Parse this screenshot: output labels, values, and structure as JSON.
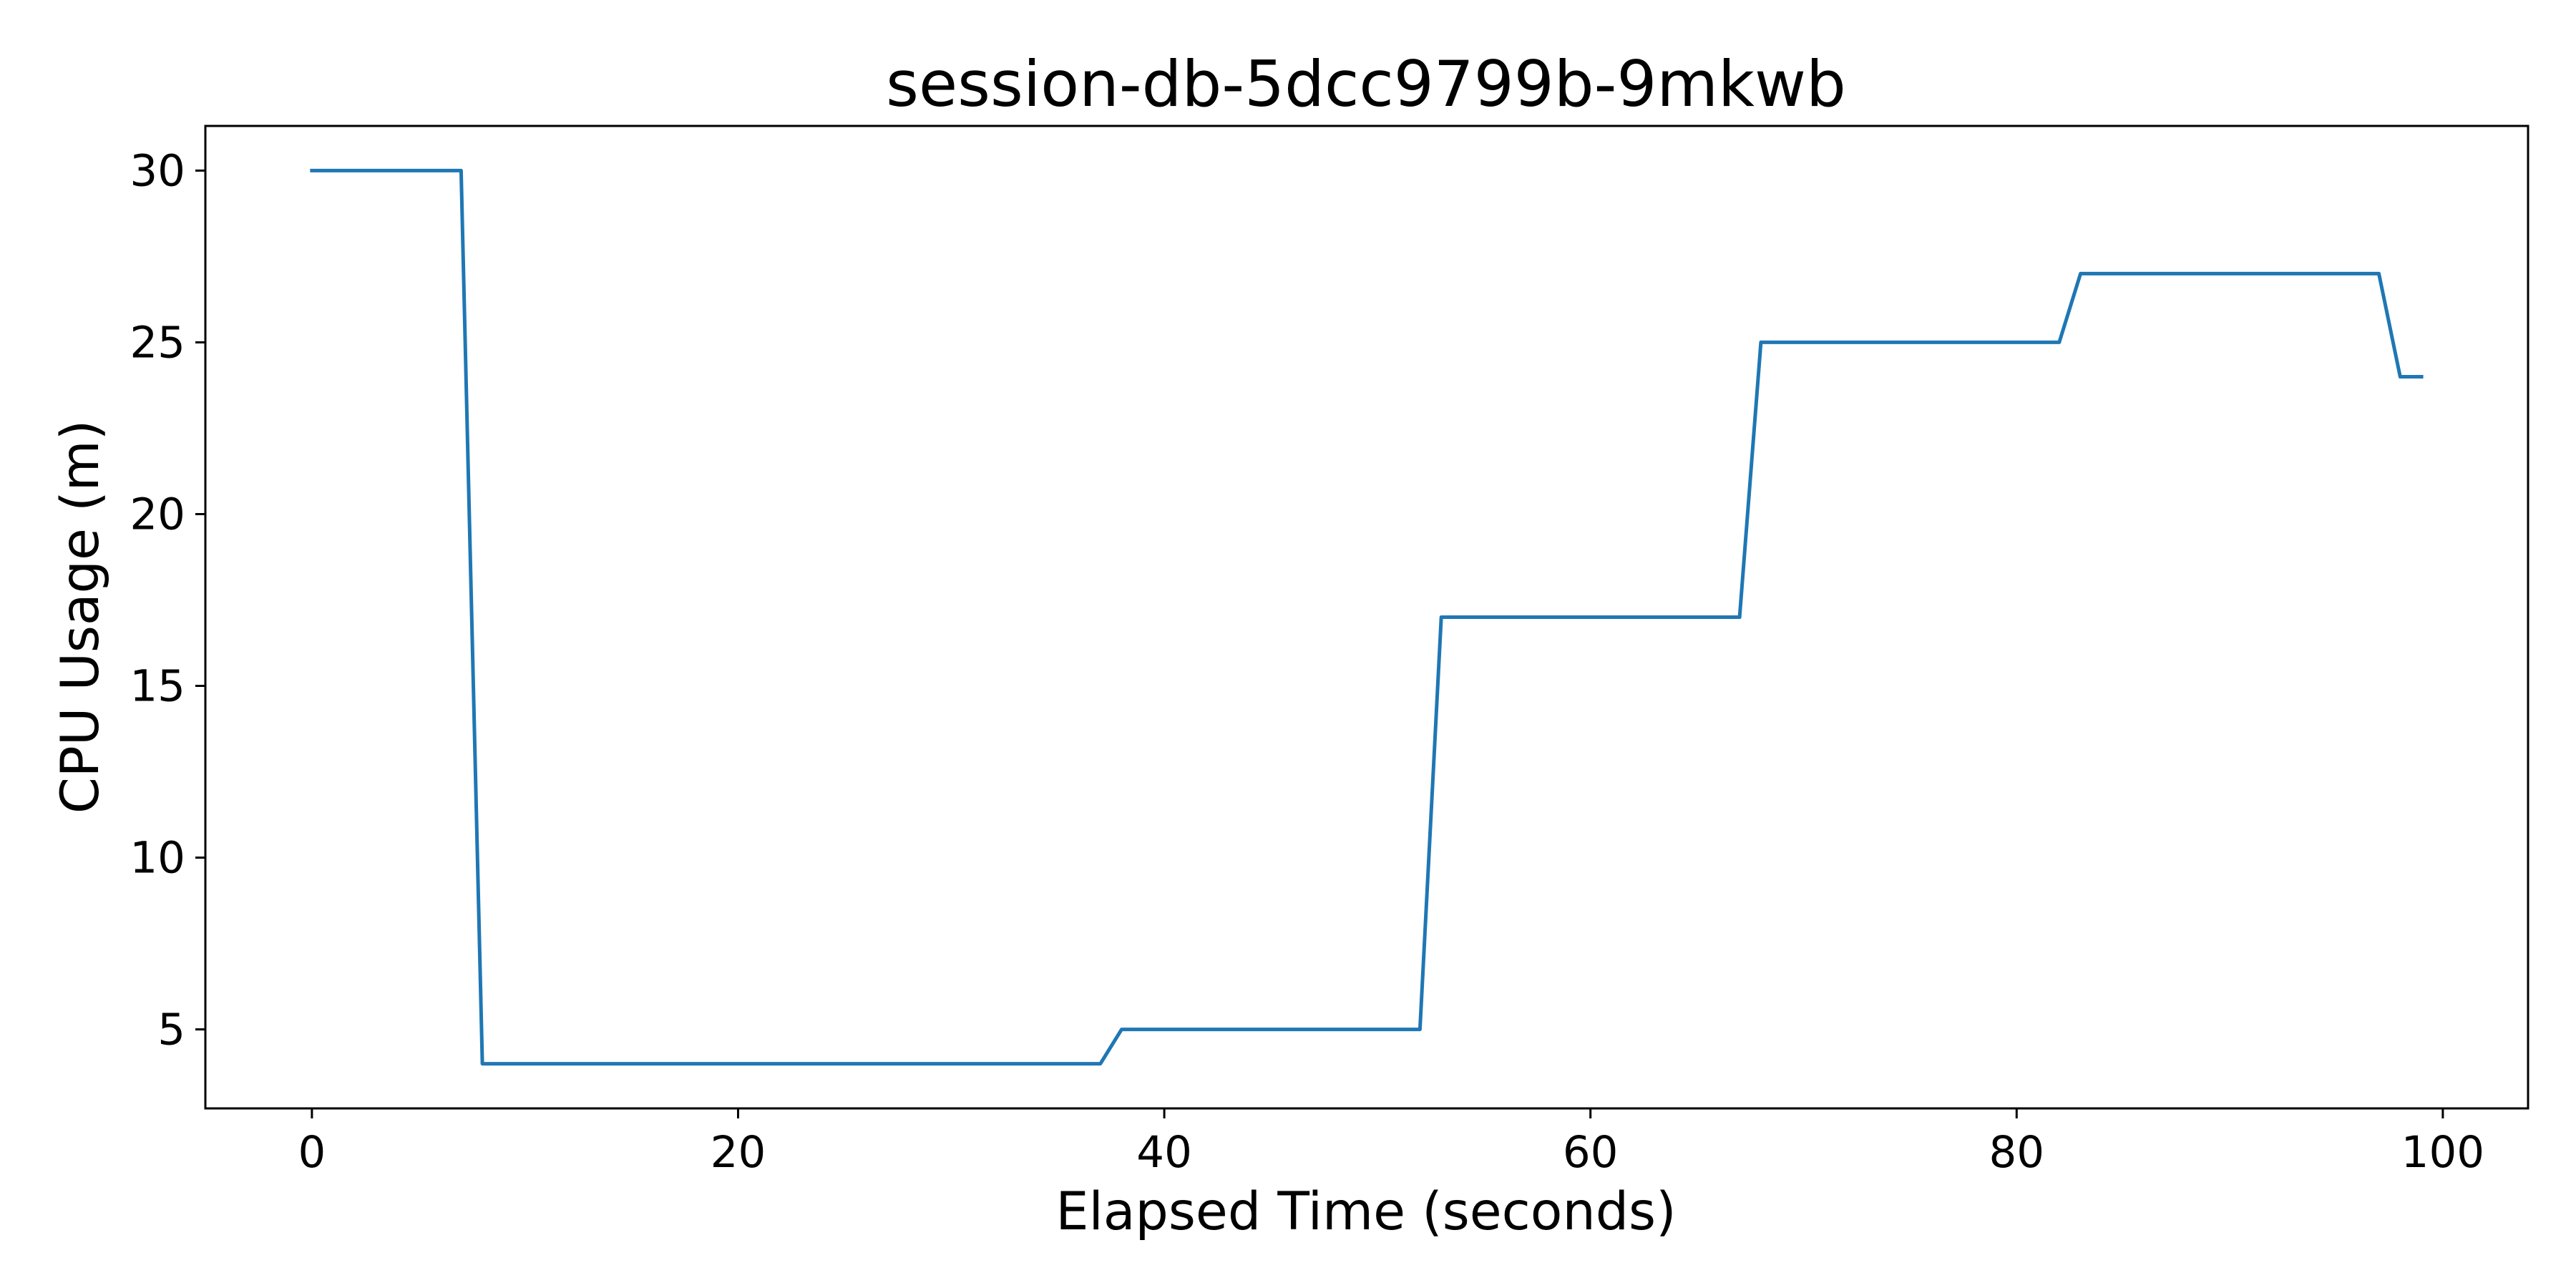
{
  "chart_data": {
    "type": "line",
    "title": "session-db-5dcc9799b-9mkwb",
    "xlabel": "Elapsed Time (seconds)",
    "ylabel": "CPU Usage (m)",
    "xlim": [
      -5,
      104
    ],
    "ylim": [
      2.7,
      31.3
    ],
    "xticks": [
      0,
      20,
      40,
      60,
      80,
      100
    ],
    "yticks": [
      5,
      10,
      15,
      20,
      25,
      30
    ],
    "grid": false,
    "legend": "none",
    "series": [
      {
        "color": "#1f77b4",
        "x": [
          0,
          1,
          2,
          3,
          4,
          5,
          6,
          7,
          8,
          9,
          10,
          11,
          12,
          13,
          14,
          15,
          16,
          17,
          18,
          19,
          20,
          21,
          22,
          23,
          24,
          25,
          26,
          27,
          28,
          29,
          30,
          31,
          32,
          33,
          34,
          35,
          36,
          37,
          38,
          39,
          40,
          41,
          42,
          43,
          44,
          45,
          46,
          47,
          48,
          49,
          50,
          51,
          52,
          53,
          54,
          55,
          56,
          57,
          58,
          59,
          60,
          61,
          62,
          63,
          64,
          65,
          66,
          67,
          68,
          69,
          70,
          71,
          72,
          73,
          74,
          75,
          76,
          77,
          78,
          79,
          80,
          81,
          82,
          83,
          84,
          85,
          86,
          87,
          88,
          89,
          90,
          91,
          92,
          93,
          94,
          95,
          96,
          97,
          98,
          99
        ],
        "y": [
          30,
          30,
          30,
          30,
          30,
          30,
          30,
          30,
          4,
          4,
          4,
          4,
          4,
          4,
          4,
          4,
          4,
          4,
          4,
          4,
          4,
          4,
          4,
          4,
          4,
          4,
          4,
          4,
          4,
          4,
          4,
          4,
          4,
          4,
          4,
          4,
          4,
          4,
          5,
          5,
          5,
          5,
          5,
          5,
          5,
          5,
          5,
          5,
          5,
          5,
          5,
          5,
          5,
          17,
          17,
          17,
          17,
          17,
          17,
          17,
          17,
          17,
          17,
          17,
          17,
          17,
          17,
          17,
          25,
          25,
          25,
          25,
          25,
          25,
          25,
          25,
          25,
          25,
          25,
          25,
          25,
          25,
          25,
          27,
          27,
          27,
          27,
          27,
          27,
          27,
          27,
          27,
          27,
          27,
          27,
          27,
          27,
          27,
          24,
          24
        ]
      }
    ]
  }
}
